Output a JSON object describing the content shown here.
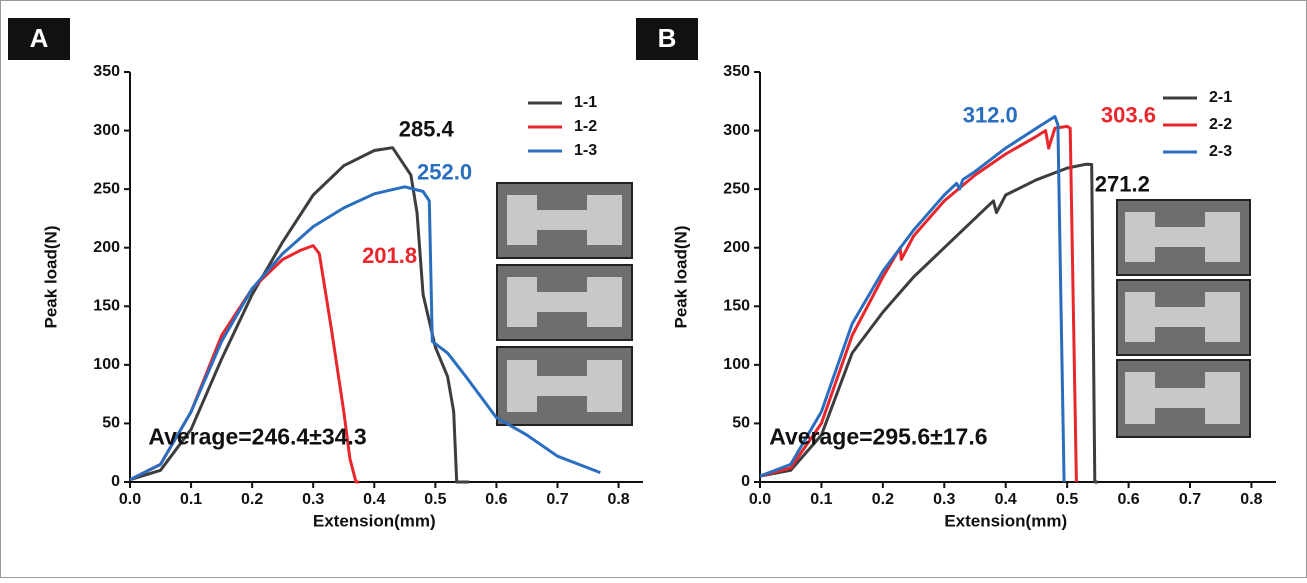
{
  "chart_data": [
    {
      "type": "line",
      "panel": "A",
      "xlabel": "Extension(mm)",
      "ylabel": "Peak load(N)",
      "xlim": [
        0,
        0.84
      ],
      "ylim": [
        0,
        350
      ],
      "xticks": [
        {
          "value": 0,
          "label": "0.0"
        },
        0.1,
        0.2,
        0.3,
        0.4,
        0.5,
        0.6,
        0.7,
        0.8
      ],
      "yticks": [
        0,
        50,
        100,
        150,
        200,
        250,
        300,
        350
      ],
      "series": [
        {
          "name": "1-1",
          "color": "#3d3d3d",
          "x": [
            0,
            0.05,
            0.1,
            0.15,
            0.2,
            0.25,
            0.3,
            0.35,
            0.4,
            0.43,
            0.46,
            0.47,
            0.48,
            0.5,
            0.52,
            0.53,
            0.535,
            0.555
          ],
          "values": [
            2,
            10,
            45,
            105,
            160,
            205,
            245,
            270,
            283,
            285.4,
            262,
            230,
            160,
            115,
            90,
            60,
            0,
            0
          ]
        },
        {
          "name": "1-2",
          "color": "#e8262b",
          "x": [
            0,
            0.05,
            0.1,
            0.15,
            0.2,
            0.25,
            0.28,
            0.3,
            0.31,
            0.33,
            0.35,
            0.36,
            0.37,
            0.375
          ],
          "values": [
            2,
            15,
            60,
            125,
            165,
            190,
            198,
            201.8,
            195,
            130,
            60,
            20,
            0,
            0
          ]
        },
        {
          "name": "1-3",
          "color": "#2a6ebf",
          "x": [
            0,
            0.05,
            0.1,
            0.15,
            0.2,
            0.25,
            0.3,
            0.35,
            0.4,
            0.45,
            0.48,
            0.49,
            0.495,
            0.52,
            0.55,
            0.6,
            0.65,
            0.7,
            0.75,
            0.77
          ],
          "values": [
            2,
            15,
            60,
            120,
            165,
            195,
            218,
            234,
            246,
            252,
            248,
            240,
            120,
            110,
            90,
            55,
            40,
            22,
            12,
            8
          ]
        }
      ],
      "annotations": [
        {
          "text": "285.4",
          "color": "#111111"
        },
        {
          "text": "252.0",
          "color": "#2a6ebf"
        },
        {
          "text": "201.8",
          "color": "#e8262b"
        }
      ],
      "average": "Average=246.4±34.3"
    },
    {
      "type": "line",
      "panel": "B",
      "xlabel": "Extension(mm)",
      "ylabel": "Peak load(N)",
      "xlim": [
        0,
        0.84
      ],
      "ylim": [
        0,
        350
      ],
      "xticks": [
        {
          "value": 0,
          "label": "0.0"
        },
        0.1,
        0.2,
        0.3,
        0.4,
        0.5,
        0.6,
        0.7,
        0.8
      ],
      "yticks": [
        0,
        50,
        100,
        150,
        200,
        250,
        300,
        350
      ],
      "series": [
        {
          "name": "2-1",
          "color": "#3d3d3d",
          "x": [
            0,
            0.05,
            0.1,
            0.15,
            0.2,
            0.25,
            0.3,
            0.35,
            0.38,
            0.385,
            0.4,
            0.45,
            0.5,
            0.53,
            0.54,
            0.545,
            0.55
          ],
          "values": [
            5,
            10,
            40,
            110,
            145,
            175,
            200,
            225,
            240,
            230,
            245,
            258,
            268,
            271.2,
            271,
            0,
            0
          ]
        },
        {
          "name": "2-2",
          "color": "#e8262b",
          "x": [
            0,
            0.05,
            0.1,
            0.15,
            0.2,
            0.228,
            0.23,
            0.25,
            0.3,
            0.35,
            0.4,
            0.45,
            0.465,
            0.47,
            0.48,
            0.5,
            0.505,
            0.51,
            0.515
          ],
          "values": [
            5,
            12,
            50,
            125,
            175,
            200,
            190,
            210,
            240,
            262,
            280,
            295,
            300,
            285,
            302,
            303.6,
            302,
            150,
            0
          ]
        },
        {
          "name": "2-3",
          "color": "#2a6ebf",
          "x": [
            0,
            0.05,
            0.1,
            0.15,
            0.2,
            0.25,
            0.3,
            0.32,
            0.325,
            0.33,
            0.35,
            0.4,
            0.45,
            0.48,
            0.485,
            0.49,
            0.495
          ],
          "values": [
            5,
            15,
            60,
            135,
            180,
            215,
            245,
            255,
            250,
            258,
            265,
            285,
            302,
            312.0,
            305,
            150,
            0
          ]
        }
      ],
      "annotations": [
        {
          "text": "312.0",
          "color": "#2a6ebf"
        },
        {
          "text": "303.6",
          "color": "#e8262b"
        },
        {
          "text": "271.2",
          "color": "#111111"
        }
      ],
      "average": "Average=295.6±17.6"
    }
  ]
}
